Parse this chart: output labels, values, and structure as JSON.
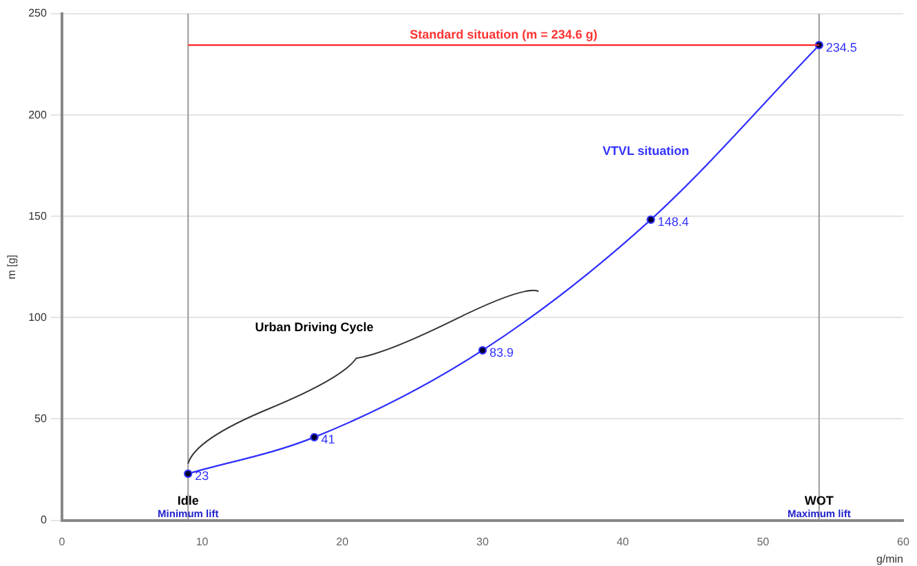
{
  "chart_data": {
    "type": "line",
    "xlabel": "g/min",
    "ylabel": "m [g]",
    "xlim": [
      0,
      60
    ],
    "xticks": [
      0,
      10,
      20,
      30,
      40,
      50,
      60
    ],
    "ylim": [
      0,
      250
    ],
    "yticks": [
      0,
      50,
      100,
      150,
      200,
      250
    ],
    "series": [
      {
        "name": "VTVL situation",
        "color": "#3333ff",
        "x": [
          9,
          18,
          30,
          42,
          54
        ],
        "values": [
          23,
          41,
          83.9,
          148.4,
          234.5
        ],
        "value_labels": [
          "23",
          "41",
          "83.9",
          "148.4",
          "234.5"
        ],
        "marker": "circle"
      },
      {
        "name": "Standard situation (m = 234.6 g)",
        "color": "#ff3333",
        "x": [
          9,
          54
        ],
        "values": [
          234.5,
          234.5
        ]
      }
    ],
    "ref_lines": [
      {
        "axis": "x",
        "value": 9,
        "color": "#999999"
      },
      {
        "axis": "x",
        "value": 54,
        "color": "#999999"
      }
    ],
    "annotations": [
      "Idle",
      "Minimum lift",
      "WOT",
      "Maximum lift",
      "Urban Driving Cycle"
    ],
    "grid": "y",
    "legend": false
  }
}
